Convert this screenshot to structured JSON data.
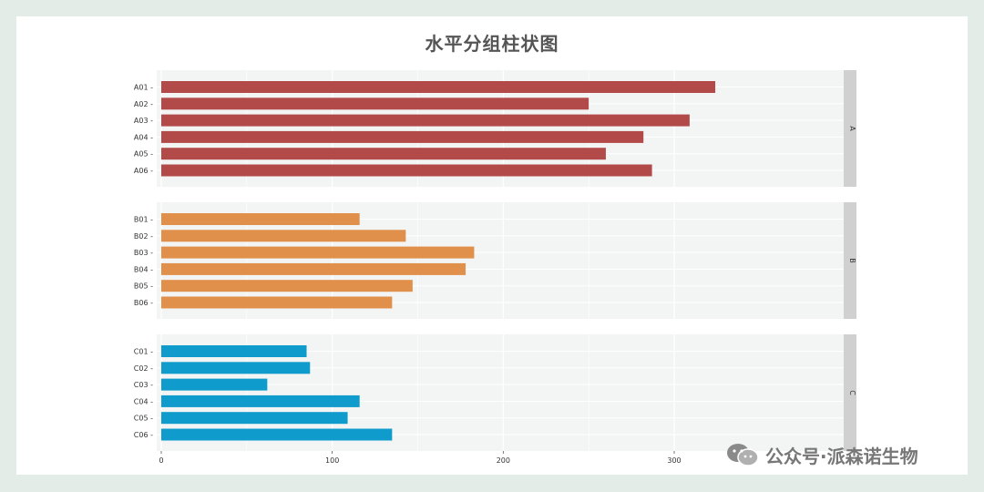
{
  "chart_data": {
    "type": "bar",
    "orientation": "horizontal",
    "title": "水平分组柱状图",
    "xlim": [
      0,
      330
    ],
    "x_ticks": [
      0,
      100,
      200,
      300
    ],
    "facets": [
      {
        "strip_label": "A",
        "color": "#b34a4a",
        "categories": [
          "A01",
          "A02",
          "A03",
          "A04",
          "A05",
          "A06"
        ],
        "values": [
          324,
          250,
          309,
          282,
          260,
          287
        ]
      },
      {
        "strip_label": "B",
        "color": "#e0904a",
        "categories": [
          "B01",
          "B02",
          "B03",
          "B04",
          "B05",
          "B06"
        ],
        "values": [
          116,
          143,
          183,
          178,
          147,
          135
        ]
      },
      {
        "strip_label": "C",
        "color": "#0f9ccd",
        "categories": [
          "C01",
          "C02",
          "C03",
          "C04",
          "C05",
          "C06"
        ],
        "values": [
          85,
          87,
          62,
          116,
          109,
          135
        ]
      }
    ],
    "grid": true
  },
  "watermark": {
    "text": "公众号·派森诺生物",
    "icon": "wechat-icon"
  }
}
